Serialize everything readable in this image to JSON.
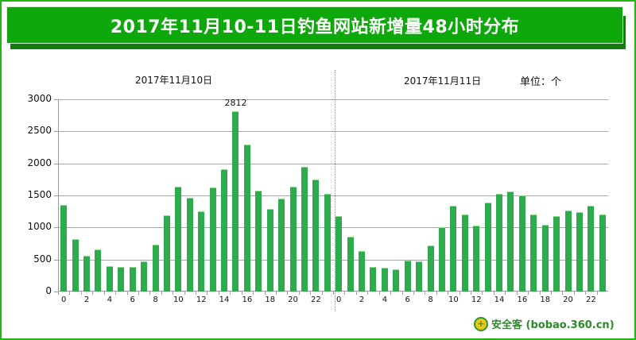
{
  "header": {
    "title": "2017年11月10-11日钓鱼网站新增量48小时分布"
  },
  "labels": {
    "day1": "2017年11月10日",
    "day2": "2017年11月11日",
    "unit": "单位：个",
    "peak": "2812"
  },
  "watermark": {
    "icon": "360-shield-icon",
    "text": "安全客 (bobao.360.cn)"
  },
  "colors": {
    "banner": "#0ea80c",
    "banner_shadow": "#167a12",
    "frame": "#22b614",
    "bar": "#2eab4c",
    "divider": "#3cc48a"
  },
  "chart_data": {
    "type": "bar",
    "title": "2017年11月10-11日钓鱼网站新增量48小时分布",
    "xlabel": "",
    "ylabel": "单位：个",
    "ylim": [
      0,
      3000
    ],
    "yticks": [
      0,
      500,
      1000,
      1500,
      2000,
      2500,
      3000
    ],
    "grid": true,
    "legend": null,
    "categories": [
      "0",
      "1",
      "2",
      "3",
      "4",
      "5",
      "6",
      "7",
      "8",
      "9",
      "10",
      "11",
      "12",
      "13",
      "14",
      "15",
      "16",
      "17",
      "18",
      "19",
      "20",
      "21",
      "22",
      "23",
      "0",
      "1",
      "2",
      "3",
      "4",
      "5",
      "6",
      "7",
      "8",
      "9",
      "10",
      "11",
      "12",
      "13",
      "14",
      "15",
      "16",
      "17",
      "18",
      "19",
      "20",
      "21",
      "22",
      "23"
    ],
    "xtick_labels_shown": [
      "0",
      "2",
      "4",
      "6",
      "8",
      "10",
      "12",
      "14",
      "16",
      "18",
      "20",
      "22",
      "0",
      "2",
      "4",
      "6",
      "8",
      "10",
      "12",
      "14",
      "16",
      "18",
      "20",
      "22"
    ],
    "series": [
      {
        "name": "2017年11月10日",
        "values": [
          1352,
          819,
          558,
          658,
          395,
          385,
          385,
          470,
          728,
          1190,
          1638,
          1465,
          1253,
          1620,
          1907,
          2812,
          2292,
          1576,
          1290,
          1452,
          1641,
          1944,
          1753,
          1526
        ]
      },
      {
        "name": "2017年11月11日",
        "values": [
          1175,
          856,
          633,
          385,
          372,
          347,
          484,
          472,
          720,
          1000,
          1344,
          1203,
          1033,
          1385,
          1522,
          1560,
          1497,
          1203,
          1042,
          1183,
          1270,
          1237,
          1344,
          1203
        ]
      }
    ],
    "annotations": [
      {
        "text": "2812",
        "x": "15 (2017年11月10日)",
        "y": 2812
      },
      {
        "text": "2017年11月10日",
        "position": "above left half"
      },
      {
        "text": "2017年11月11日",
        "position": "above right half"
      },
      {
        "text": "单位：个",
        "position": "top right"
      }
    ]
  }
}
